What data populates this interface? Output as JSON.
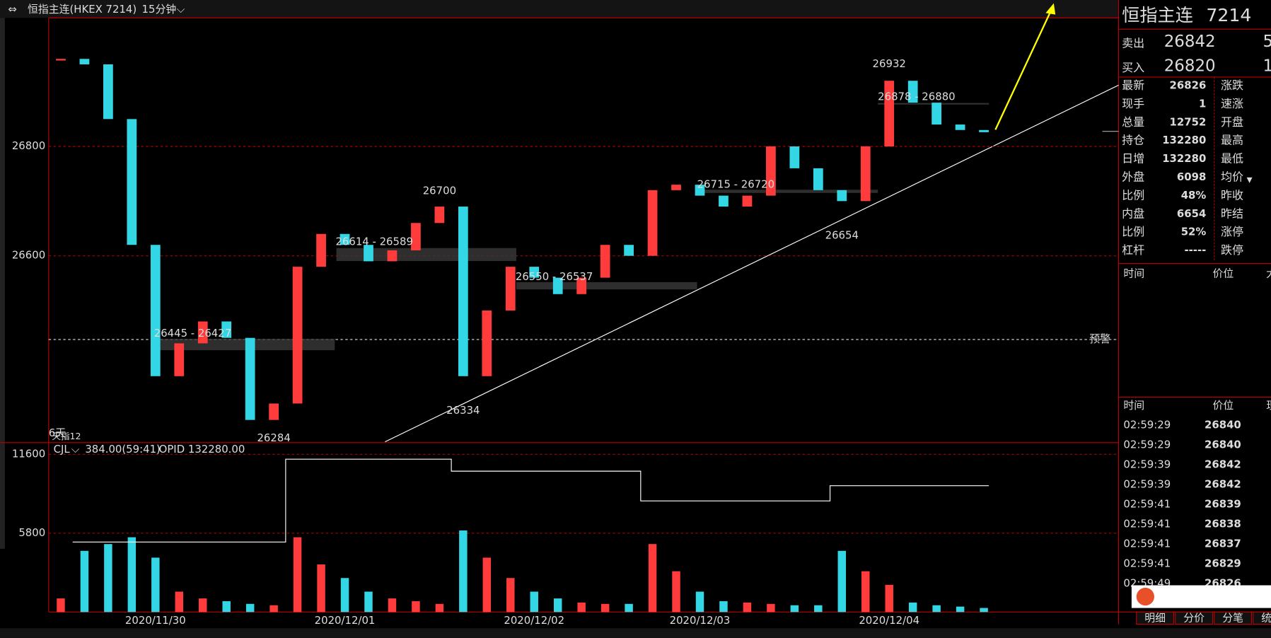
{
  "header": {
    "symbol": "恒指主连(HKEX 7214)",
    "period": "15分钟"
  },
  "chart_data": [
    {
      "type": "candlestick",
      "categories": [
        null,
        null,
        null,
        null,
        "2020/11/30",
        null,
        null,
        null,
        null,
        null,
        null,
        null,
        "2020/12/01",
        null,
        null,
        null,
        null,
        null,
        null,
        null,
        "2020/12/02",
        null,
        null,
        null,
        null,
        null,
        null,
        "2020/12/03",
        null,
        null,
        null,
        null,
        null,
        null,
        null,
        "2020/12/04",
        null,
        null,
        null,
        null
      ],
      "values": [
        26960,
        26950,
        26850,
        26620,
        26380,
        26440,
        26480,
        26450,
        26300,
        26330,
        26580,
        26640,
        26620,
        26590,
        26610,
        26660,
        26690,
        26380,
        26500,
        26580,
        26560,
        26530,
        26560,
        26620,
        26600,
        26720,
        26730,
        26710,
        26690,
        26710,
        26800,
        26760,
        26720,
        26700,
        26800,
        26920,
        26880,
        26840,
        26830,
        26826
      ],
      "ylim": [
        26260,
        27035
      ],
      "yticks": [
        26600,
        26800
      ],
      "grid": true,
      "up_color": "#ff3b3b",
      "down_color": "#33d6e4",
      "alert": {
        "value": 26447,
        "label": "预警"
      },
      "corner_labels": [
        "6天",
        "天指12"
      ],
      "extremes": [
        {
          "value": 26700,
          "color": "#ff3b3b"
        },
        {
          "value": 26334,
          "color": "#33d6e4"
        },
        {
          "value": 26284,
          "color": "#33d6e4"
        },
        {
          "value": 26932,
          "color": "#ff3b3b"
        },
        {
          "value": 26654,
          "color": "#33d6e4"
        }
      ],
      "zones": [
        "26614 - 26589",
        "26550 - 26537",
        "26445 - 26427",
        "26715 - 26720",
        "26878 - 26880"
      ]
    },
    {
      "type": "bar",
      "readout": "384.00(59:41)",
      "ylim": [
        0,
        12400
      ],
      "yticks": [
        5800,
        11600
      ],
      "grid": true,
      "series": [
        {
          "name": "CJL",
          "values": [
            1000,
            4500,
            5000,
            5500,
            4000,
            1500,
            1000,
            800,
            600,
            500,
            5500,
            3500,
            2500,
            1500,
            1000,
            800,
            600,
            6000,
            4000,
            2500,
            1500,
            1000,
            700,
            600,
            600,
            5000,
            3000,
            1500,
            800,
            700,
            600,
            500,
            500,
            4500,
            3000,
            2000,
            700,
            500,
            400,
            300
          ]
        },
        {
          "name": "OPID 132280.00",
          "color": "#ffffff",
          "values": [
            null,
            5150,
            5150,
            5150,
            5150,
            5150,
            5150,
            5150,
            5150,
            5150,
            11240,
            11240,
            11240,
            11240,
            11240,
            11240,
            11240,
            10360,
            10360,
            10360,
            10360,
            10360,
            10360,
            10360,
            10360,
            8170,
            8170,
            8170,
            8170,
            8170,
            8170,
            8170,
            8170,
            9290,
            9290,
            9290,
            9290,
            9290,
            9290,
            9290
          ]
        }
      ]
    }
  ],
  "quote": {
    "title": "恒指主连",
    "code": "7214",
    "ask": {
      "label": "卖出",
      "price": 26842,
      "size": 5
    },
    "bid": {
      "label": "买入",
      "price": 26820,
      "size": 1
    },
    "rows": [
      [
        "最新",
        26826,
        "涨跌"
      ],
      [
        "现手",
        1,
        "速涨"
      ],
      [
        "总量",
        12752,
        "开盘"
      ],
      [
        "持仓",
        132280,
        "最高"
      ],
      [
        "日增",
        132280,
        "最低"
      ],
      [
        "外盘",
        6098,
        "均价"
      ],
      [
        "比例",
        "48%",
        "昨收"
      ],
      [
        "内盘",
        6654,
        "昨结"
      ],
      [
        "比例",
        "52%",
        "涨停"
      ],
      [
        "杠杆",
        "-----",
        "跌停"
      ]
    ]
  },
  "big_orders": {
    "columns": [
      "时间",
      "价位",
      "大"
    ]
  },
  "ticks": {
    "columns": [
      "时间",
      "价位",
      "现"
    ],
    "rows": [
      [
        "02:59:29",
        26840
      ],
      [
        "02:59:29",
        26840
      ],
      [
        "02:59:39",
        26842
      ],
      [
        "02:59:39",
        26842
      ],
      [
        "02:59:41",
        26839
      ],
      [
        "02:59:41",
        26838
      ],
      [
        "02:59:41",
        26837
      ],
      [
        "02:59:41",
        26829
      ],
      [
        "02:59:49",
        26826
      ]
    ]
  },
  "tabs": [
    "明细",
    "分价",
    "分笔",
    "统计"
  ]
}
